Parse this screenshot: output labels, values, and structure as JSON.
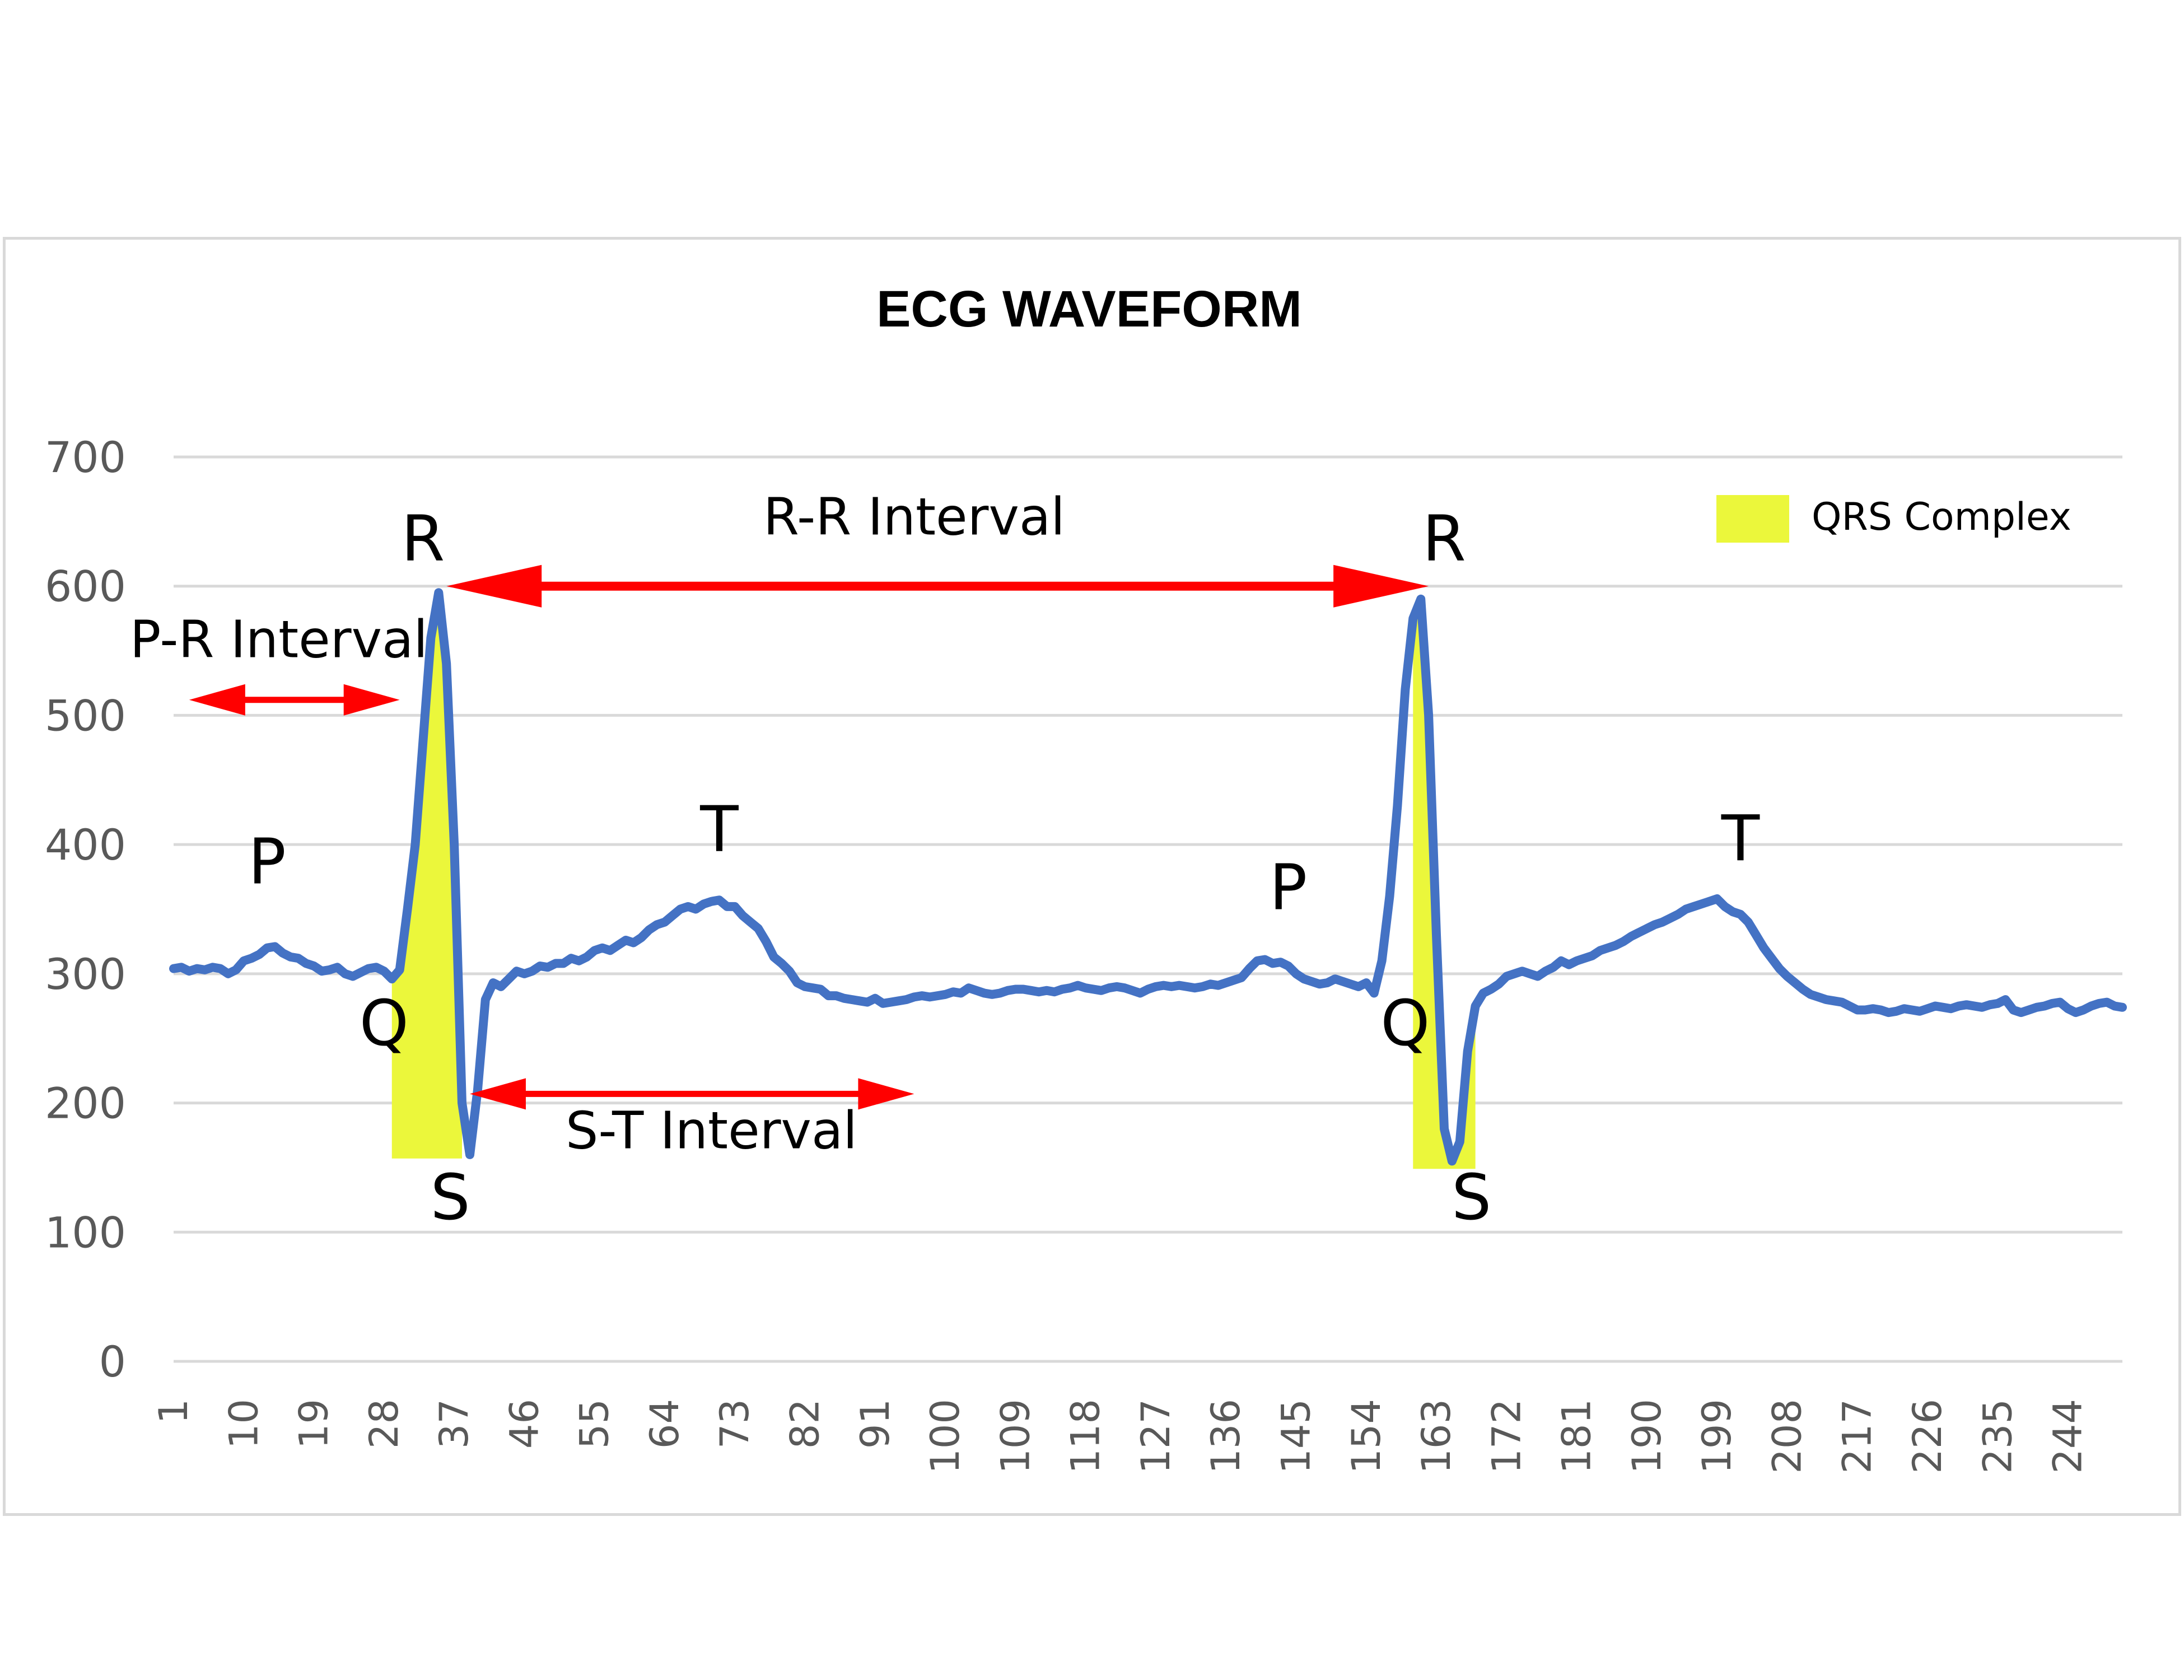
{
  "chart_data": {
    "type": "line",
    "title": "ECG WAVEFORM",
    "xlabel": "",
    "ylabel": "",
    "ylim": [
      0,
      700
    ],
    "ytick_labels": [
      "0",
      "100",
      "200",
      "300",
      "400",
      "500",
      "600",
      "700"
    ],
    "x_range": [
      1,
      251
    ],
    "xtick_labels": [
      "1",
      "10",
      "19",
      "28",
      "37",
      "46",
      "55",
      "64",
      "73",
      "82",
      "91",
      "100",
      "109",
      "118",
      "127",
      "136",
      "145",
      "154",
      "163",
      "172",
      "181",
      "190",
      "199",
      "208",
      "217",
      "226",
      "235",
      "244"
    ],
    "grid": true,
    "series_color": "#4472c4",
    "series": [
      {
        "values": [
          304,
          305,
          302,
          304,
          303,
          305,
          304,
          300,
          303,
          310,
          312,
          315,
          320,
          321,
          316,
          313,
          312,
          308,
          306,
          302,
          303,
          305,
          300,
          298,
          301,
          304,
          305,
          302,
          296,
          303,
          350,
          400,
          480,
          560,
          595,
          540,
          400,
          200,
          160,
          210,
          280,
          293,
          290,
          296,
          302,
          300,
          302,
          306,
          305,
          308,
          308,
          312,
          310,
          313,
          318,
          320,
          318,
          322,
          326,
          324,
          328,
          334,
          338,
          340,
          345,
          350,
          352,
          350,
          354,
          356,
          357,
          352,
          352,
          345,
          340,
          335,
          325,
          313,
          308,
          302,
          293,
          290,
          289,
          288,
          283,
          283,
          281,
          280,
          279,
          278,
          281,
          277,
          278,
          279,
          280,
          282,
          283,
          282,
          283,
          284,
          286,
          285,
          289,
          287,
          285,
          284,
          285,
          287,
          288,
          288,
          287,
          286,
          287,
          286,
          288,
          289,
          291,
          289,
          288,
          287,
          289,
          290,
          289,
          287,
          285,
          288,
          290,
          291,
          290,
          291,
          290,
          289,
          290,
          292,
          291,
          293,
          295,
          297,
          304,
          310,
          311,
          308,
          309,
          306,
          300,
          296,
          294,
          292,
          293,
          296,
          294,
          292,
          290,
          293,
          285,
          310,
          360,
          430,
          520,
          575,
          590,
          500,
          330,
          180,
          155,
          170,
          240,
          275,
          285,
          288,
          292,
          298,
          300,
          302,
          300,
          298,
          302,
          305,
          310,
          307,
          310,
          312,
          314,
          318,
          320,
          322,
          325,
          329,
          332,
          335,
          338,
          340,
          343,
          346,
          350,
          352,
          354,
          356,
          358,
          352,
          348,
          346,
          340,
          330,
          320,
          312,
          304,
          298,
          293,
          288,
          284,
          282,
          280,
          279,
          278,
          275,
          272,
          272,
          273,
          272,
          270,
          271,
          273,
          272,
          271,
          273,
          275,
          274,
          273,
          275,
          276,
          275,
          274,
          276,
          277,
          280,
          272,
          270,
          272,
          274,
          275,
          277,
          278,
          273,
          270,
          272,
          275,
          277,
          278,
          275,
          274
        ]
      }
    ],
    "shaded_regions": [
      {
        "label": "QRS Complex",
        "color": "#ebf73b",
        "x_start": 29,
        "x_end": 38,
        "baseline": 157
      },
      {
        "label": "QRS Complex",
        "color": "#ebf73b",
        "x_start": 160,
        "x_end": 168,
        "baseline": 149
      }
    ],
    "wave_labels": [
      {
        "text": "P",
        "x": 13,
        "y": 370
      },
      {
        "text": "R",
        "x": 33,
        "y": 620
      },
      {
        "text": "Q",
        "x": 28,
        "y": 245
      },
      {
        "text": "S",
        "x": 36.5,
        "y": 110
      },
      {
        "text": "T",
        "x": 71,
        "y": 395
      },
      {
        "text": "P",
        "x": 144,
        "y": 350
      },
      {
        "text": "R",
        "x": 164,
        "y": 620
      },
      {
        "text": "Q",
        "x": 159,
        "y": 245
      },
      {
        "text": "S",
        "x": 167.5,
        "y": 110
      },
      {
        "text": "T",
        "x": 202,
        "y": 388
      }
    ],
    "intervals": [
      {
        "label": "P-R Interval",
        "x_start": 3,
        "x_end": 30,
        "y": 512,
        "label_x": 14.5,
        "label_y": 545,
        "color": "#ff0000"
      },
      {
        "label": "R-R Interval",
        "x_start": 36,
        "x_end": 162,
        "y": 600,
        "label_x": 96,
        "label_y": 640,
        "color": "#ff0000"
      },
      {
        "label": "S-T Interval",
        "x_start": 39,
        "x_end": 96,
        "y": 207,
        "label_x": 70,
        "label_y": 165,
        "color": "#ff0000"
      }
    ],
    "legend": {
      "label": "QRS Complex",
      "color": "#ebf73b",
      "placement": "top-right"
    }
  }
}
